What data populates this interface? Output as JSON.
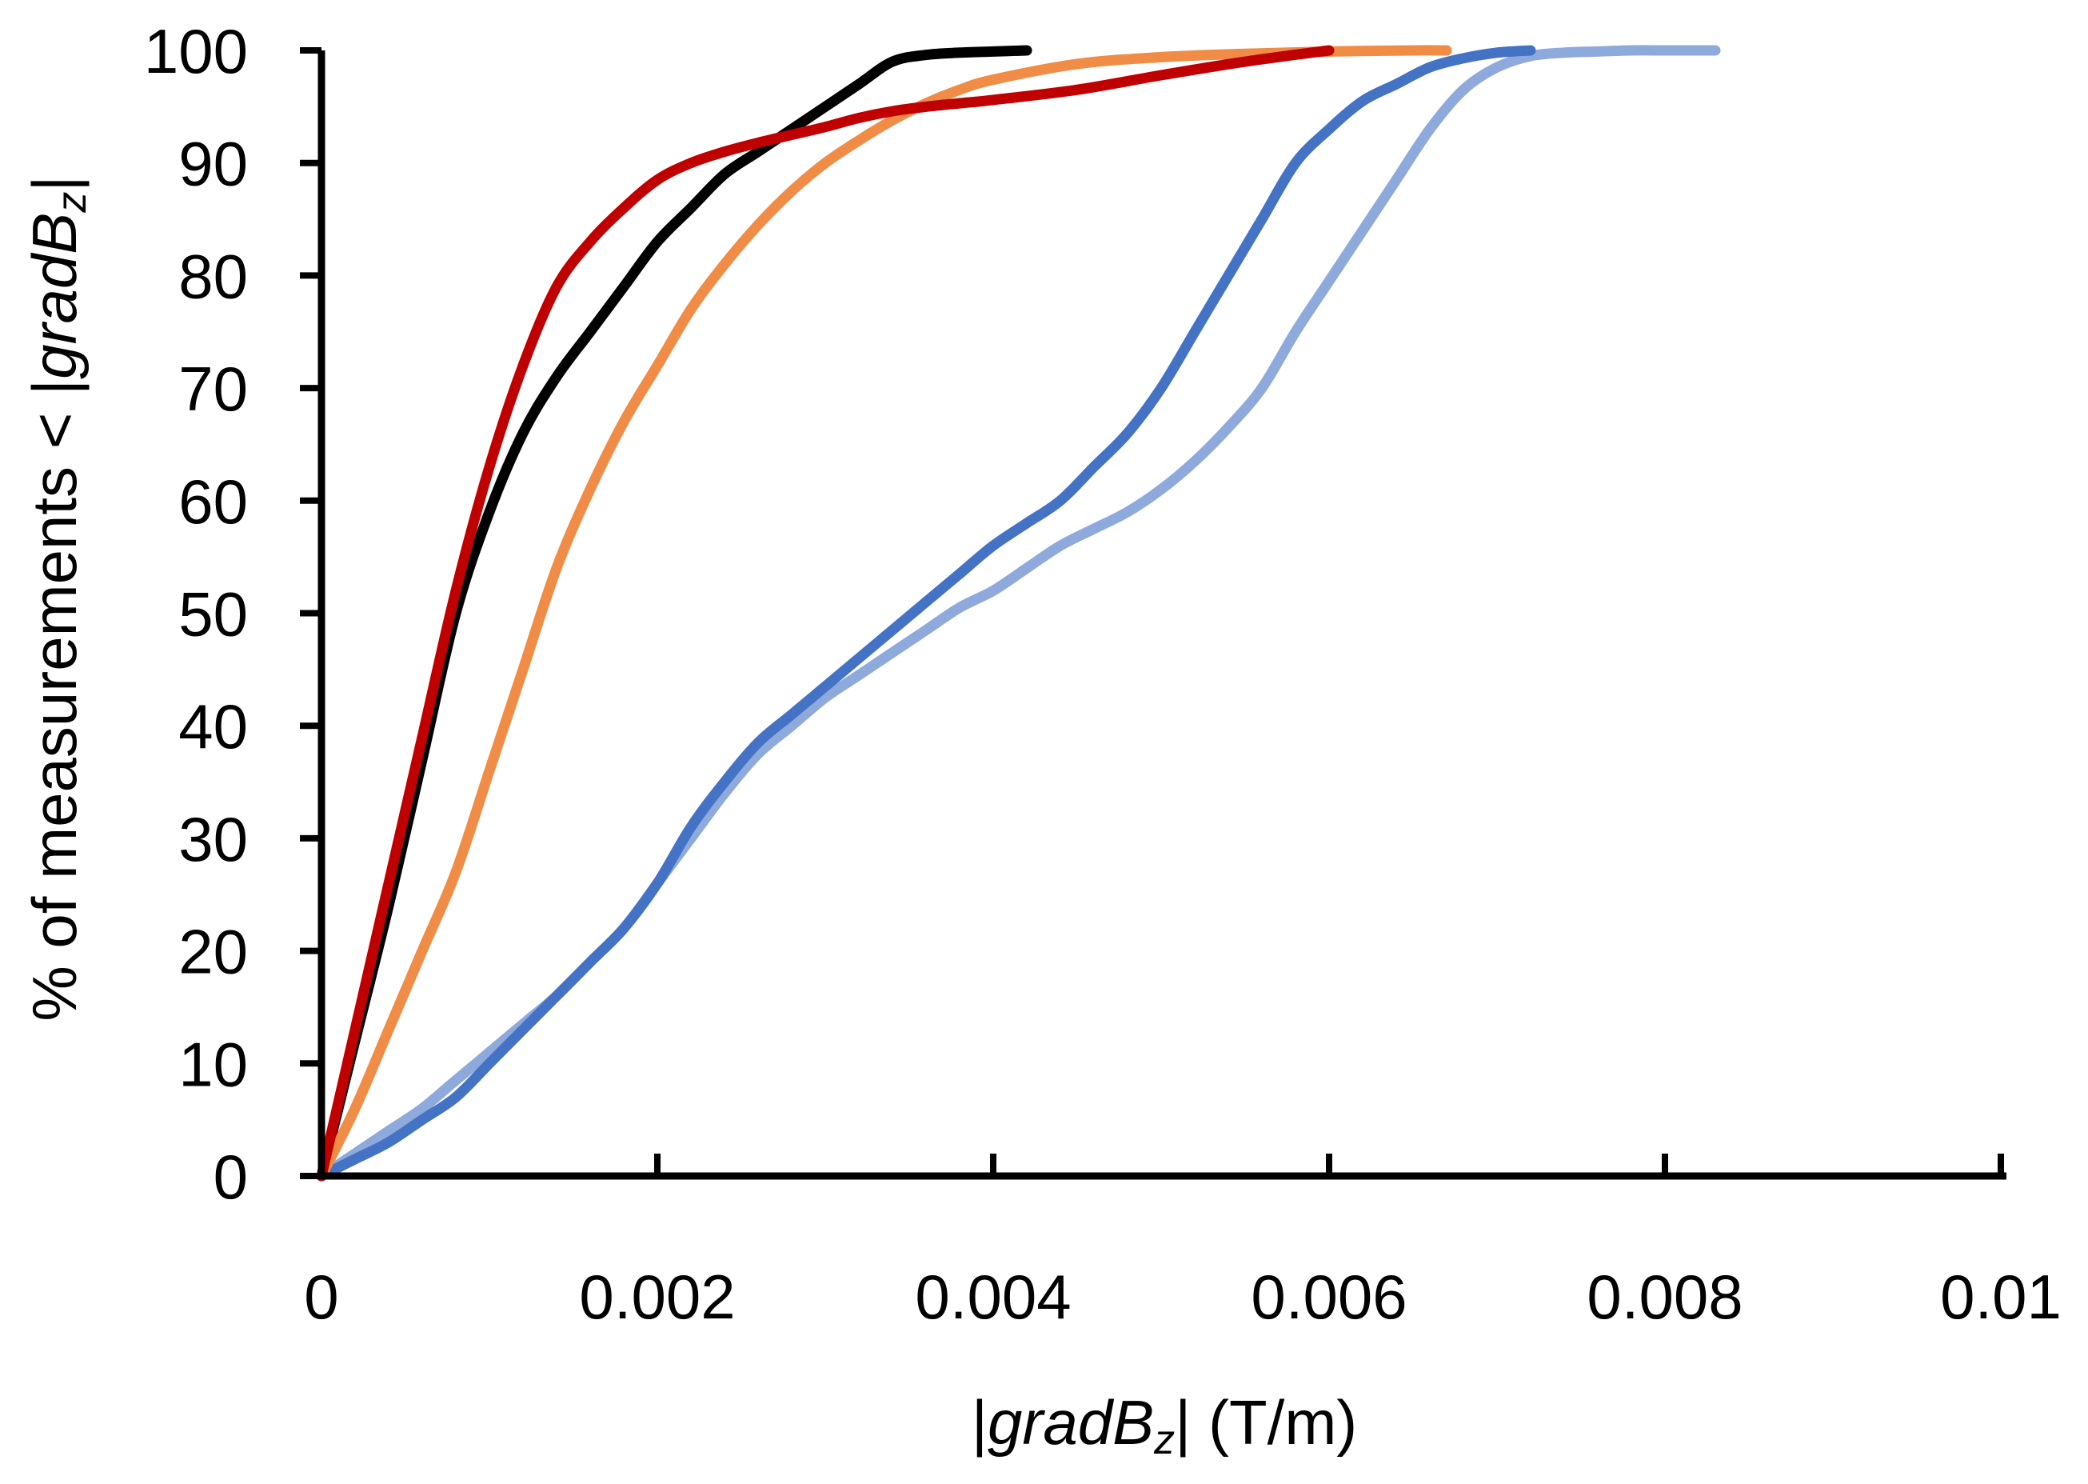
{
  "chart_data": {
    "type": "line",
    "title": "",
    "xlabel": {
      "bar_left": "|",
      "italic": "gradB",
      "sub": "z",
      "bar_right": "|",
      "unit": " (T/m)"
    },
    "ylabel": {
      "prefix": "% of measurements < ",
      "bar_left": "|",
      "italic": "gradB",
      "sub": "z",
      "bar_right": "|"
    },
    "xlim": [
      0,
      0.01
    ],
    "ylim": [
      0,
      100
    ],
    "xticks": [
      0,
      0.002,
      0.004,
      0.006,
      0.008,
      0.01
    ],
    "xtick_labels": [
      "0",
      "0.002",
      "0.004",
      "0.006",
      "0.008",
      "0.01"
    ],
    "yticks": [
      0,
      10,
      20,
      30,
      40,
      50,
      60,
      70,
      80,
      90,
      100
    ],
    "ytick_labels": [
      "0",
      "10",
      "20",
      "30",
      "40",
      "50",
      "60",
      "70",
      "80",
      "90",
      "100"
    ],
    "grid": false,
    "legend": "none",
    "series": [
      {
        "name": "black",
        "color": "#000000",
        "x": [
          0,
          0.0002,
          0.0004,
          0.0006,
          0.0008,
          0.001,
          0.0012,
          0.0014,
          0.0016,
          0.0018,
          0.002,
          0.0022,
          0.0024,
          0.0026,
          0.0028,
          0.003,
          0.0032,
          0.0034,
          0.0036,
          0.0038,
          0.004,
          0.0042
        ],
        "y": [
          0,
          12,
          24,
          37,
          50,
          59,
          66,
          71,
          75,
          79,
          83,
          86,
          89,
          91,
          93,
          95,
          97,
          99,
          99.6,
          99.8,
          99.9,
          100
        ]
      },
      {
        "name": "red",
        "color": "#C00000",
        "x": [
          0,
          0.0002,
          0.0004,
          0.0006,
          0.0008,
          0.001,
          0.0012,
          0.0014,
          0.0016,
          0.0018,
          0.002,
          0.0022,
          0.0024,
          0.0026,
          0.0028,
          0.003,
          0.0032,
          0.0034,
          0.0036,
          0.0038,
          0.004,
          0.0045,
          0.005,
          0.0055,
          0.006
        ],
        "y": [
          0,
          13,
          26,
          39,
          52,
          63,
          72,
          79,
          83,
          86,
          88.5,
          90,
          91,
          91.8,
          92.5,
          93.2,
          94,
          94.6,
          95,
          95.3,
          95.6,
          96.5,
          97.8,
          99,
          100
        ]
      },
      {
        "name": "orange",
        "color": "#F08C46",
        "x": [
          0,
          0.0002,
          0.0004,
          0.0006,
          0.0008,
          0.001,
          0.0012,
          0.0014,
          0.0016,
          0.0018,
          0.002,
          0.0022,
          0.0024,
          0.0026,
          0.0028,
          0.003,
          0.0032,
          0.0034,
          0.0036,
          0.0038,
          0.004,
          0.0045,
          0.005,
          0.0055,
          0.006,
          0.0065,
          0.0067
        ],
        "y": [
          0,
          6,
          13,
          20,
          27,
          36,
          45,
          54,
          61,
          67,
          72,
          77,
          81,
          84.5,
          87.5,
          90,
          92,
          93.8,
          95.3,
          96.5,
          97.4,
          98.8,
          99.4,
          99.7,
          99.9,
          100,
          100
        ]
      },
      {
        "name": "blue",
        "color": "#4472C4",
        "x": [
          0,
          0.0002,
          0.0004,
          0.0006,
          0.0008,
          0.001,
          0.0012,
          0.0014,
          0.0016,
          0.0018,
          0.002,
          0.0022,
          0.0024,
          0.0026,
          0.0028,
          0.003,
          0.0032,
          0.0034,
          0.0036,
          0.0038,
          0.004,
          0.0042,
          0.0044,
          0.0046,
          0.0048,
          0.005,
          0.0052,
          0.0054,
          0.0056,
          0.0058,
          0.006,
          0.0062,
          0.0064,
          0.0066,
          0.0068,
          0.007,
          0.0072
        ],
        "y": [
          0,
          1.5,
          3,
          5,
          7,
          10,
          13,
          16,
          19,
          22,
          26,
          31,
          35,
          38.5,
          41,
          43.5,
          46,
          48.5,
          51,
          53.5,
          56,
          58,
          60,
          63,
          66,
          70,
          75,
          80,
          85,
          90,
          93,
          95.5,
          97,
          98.5,
          99.3,
          99.8,
          100
        ]
      },
      {
        "name": "light blue",
        "color": "#8EA9DB",
        "x": [
          0,
          0.0002,
          0.0004,
          0.0006,
          0.0008,
          0.001,
          0.0012,
          0.0014,
          0.0016,
          0.0018,
          0.002,
          0.0022,
          0.0024,
          0.0026,
          0.0028,
          0.003,
          0.0032,
          0.0034,
          0.0036,
          0.0038,
          0.004,
          0.0042,
          0.0044,
          0.0046,
          0.0048,
          0.005,
          0.0052,
          0.0054,
          0.0056,
          0.0058,
          0.006,
          0.0062,
          0.0064,
          0.0066,
          0.0068,
          0.007,
          0.0072,
          0.0074,
          0.0076,
          0.0078,
          0.008,
          0.0082,
          0.0083
        ],
        "y": [
          0,
          2,
          4,
          6,
          8.5,
          11,
          13.5,
          16,
          19,
          22,
          26,
          30,
          34,
          37.5,
          40,
          42.5,
          44.5,
          46.5,
          48.5,
          50.5,
          52,
          54,
          56,
          57.5,
          59,
          61,
          63.5,
          66.5,
          70,
          75,
          79.5,
          84,
          88.5,
          93,
          96.5,
          98.5,
          99.5,
          99.8,
          99.9,
          100,
          100,
          100,
          100
        ]
      }
    ]
  }
}
